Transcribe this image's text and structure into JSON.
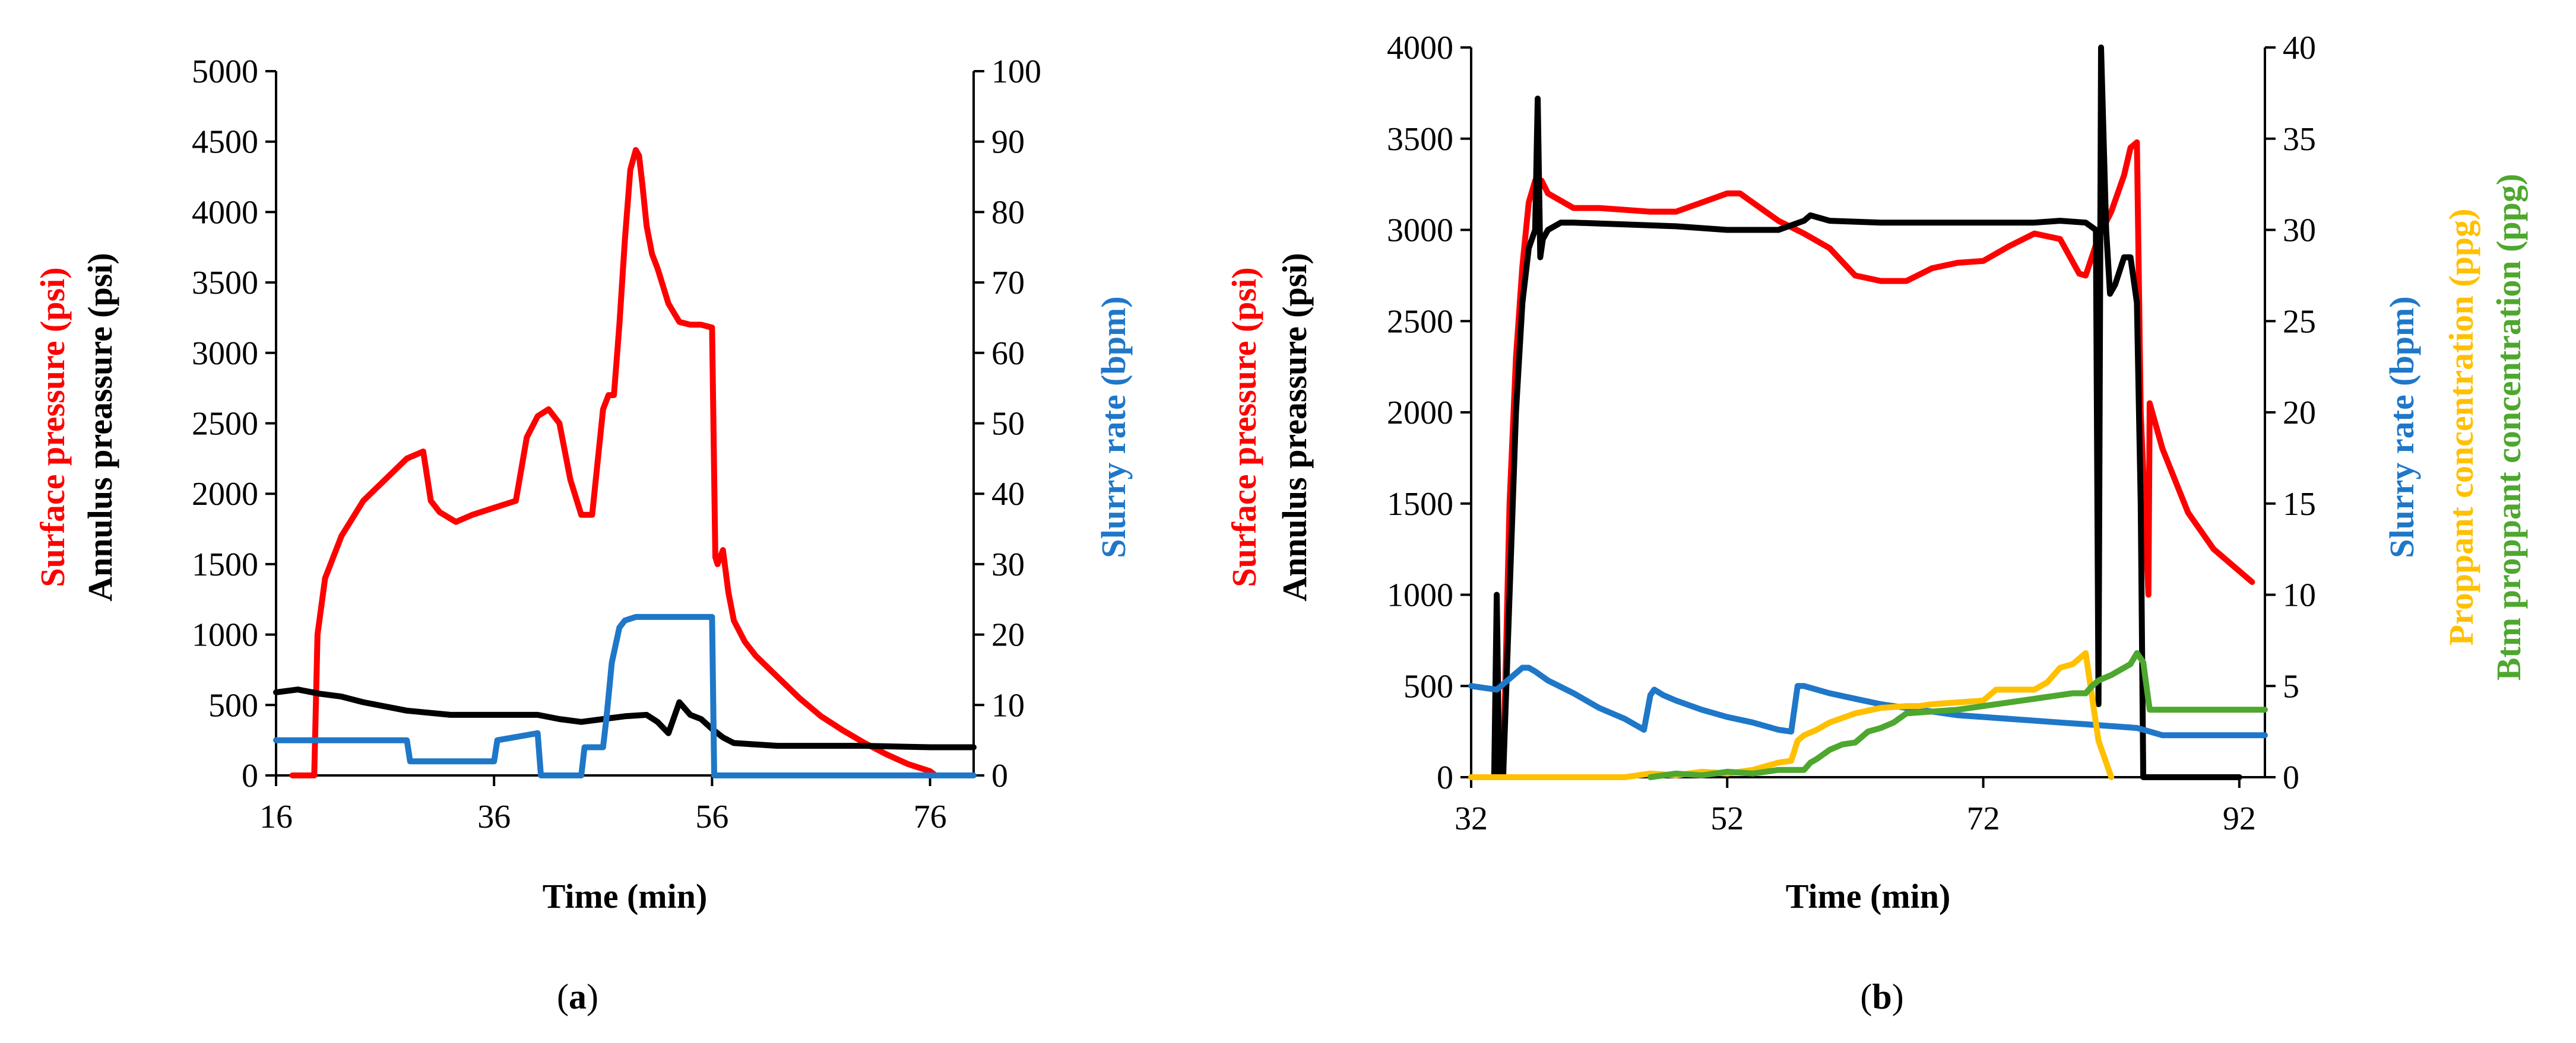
{
  "colors": {
    "surface": "#ff0000",
    "annulus": "#000000",
    "slurry": "#1f77c8",
    "proppant": "#ffc000",
    "btm": "#4ea72e"
  },
  "chart_data": [
    {
      "type": "line",
      "caption": "a",
      "xlabel": "Time (min)",
      "xlim": [
        16,
        80
      ],
      "xticks": [
        16,
        36,
        56,
        76
      ],
      "left_axis": {
        "labels": [
          {
            "text": "Surface pressure (psi)",
            "color": "surface"
          },
          {
            "text": "Annulus preassure (psi)",
            "color": "annulus"
          }
        ],
        "ylim": [
          0,
          5000
        ],
        "ticks": [
          0,
          500,
          1000,
          1500,
          2000,
          2500,
          3000,
          3500,
          4000,
          4500,
          5000
        ]
      },
      "right_axis": {
        "labels": [
          {
            "text": "Slurry rate (bpm)",
            "color": "slurry"
          }
        ],
        "ylim": [
          0,
          100
        ],
        "ticks": [
          0,
          10,
          20,
          30,
          40,
          50,
          60,
          70,
          80,
          90,
          100
        ]
      },
      "series": [
        {
          "name": "Surface pressure (psi)",
          "axis": "left",
          "color": "surface",
          "x": [
            17.5,
            19.5,
            19.8,
            20.5,
            22,
            24,
            26,
            28,
            29.5,
            30.2,
            31,
            32.5,
            34,
            36,
            38,
            39,
            40,
            41,
            42,
            43,
            44,
            45,
            46,
            46.5,
            47,
            47.5,
            48,
            48.5,
            49,
            49.3,
            49.6,
            50,
            50.5,
            51,
            52,
            53,
            54,
            55,
            56,
            56.3,
            56.5,
            57,
            57.5,
            58,
            59,
            60,
            62,
            64,
            66,
            68,
            70,
            72,
            74,
            76,
            76.5
          ],
          "y": [
            0,
            0,
            1000,
            1400,
            1700,
            1950,
            2100,
            2250,
            2300,
            1950,
            1870,
            1800,
            1850,
            1900,
            1950,
            2400,
            2550,
            2600,
            2500,
            2100,
            1850,
            1850,
            2600,
            2700,
            2700,
            3200,
            3800,
            4300,
            4440,
            4400,
            4200,
            3900,
            3700,
            3600,
            3350,
            3220,
            3200,
            3200,
            3180,
            1550,
            1500,
            1600,
            1300,
            1100,
            950,
            850,
            700,
            550,
            420,
            320,
            230,
            150,
            80,
            30,
            0
          ]
        },
        {
          "name": "Annulus preassure (psi)",
          "axis": "left",
          "color": "annulus",
          "x": [
            16,
            18,
            20,
            22,
            24,
            28,
            32,
            36,
            40,
            42,
            44,
            46,
            48,
            50,
            51,
            52,
            53,
            54,
            55,
            56,
            57,
            58,
            60,
            62,
            66,
            70,
            76,
            80
          ],
          "y": [
            590,
            610,
            580,
            560,
            520,
            460,
            430,
            430,
            430,
            400,
            380,
            400,
            420,
            430,
            380,
            300,
            520,
            430,
            400,
            330,
            270,
            230,
            220,
            210,
            210,
            210,
            200,
            200
          ]
        },
        {
          "name": "Slurry rate (bpm)",
          "axis": "right",
          "color": "slurry",
          "x": [
            16,
            28,
            28.3,
            33,
            36,
            36.3,
            40,
            40.3,
            42,
            42.3,
            44,
            44.3,
            46,
            46.3,
            46.8,
            47.5,
            48,
            49,
            50,
            52,
            54,
            56,
            56.2,
            60,
            70,
            80
          ],
          "y": [
            5,
            5,
            2,
            2,
            2,
            5,
            6,
            0,
            0,
            0,
            0,
            4,
            4,
            8,
            16,
            21,
            22,
            22.5,
            22.5,
            22.5,
            22.5,
            22.5,
            0,
            0,
            0,
            0
          ]
        }
      ]
    },
    {
      "type": "line",
      "caption": "b",
      "xlabel": "Time (min)",
      "xlim": [
        32,
        94
      ],
      "xticks": [
        32,
        52,
        72,
        92
      ],
      "left_axis": {
        "labels": [
          {
            "text": "Surface pressure (psi)",
            "color": "surface"
          },
          {
            "text": "Annulus preassure (psi)",
            "color": "annulus"
          }
        ],
        "ylim": [
          0,
          4000
        ],
        "ticks": [
          0,
          500,
          1000,
          1500,
          2000,
          2500,
          3000,
          3500,
          4000
        ]
      },
      "right_axis": {
        "labels": [
          {
            "text": "Slurry rate (bpm)",
            "color": "slurry"
          },
          {
            "text": "Proppant concentration (ppg)",
            "color": "proppant"
          },
          {
            "text": "Btm proppant concentration (ppg)",
            "color": "btm"
          }
        ],
        "ylim": [
          0,
          40
        ],
        "ticks": [
          0,
          5,
          10,
          15,
          20,
          25,
          30,
          35,
          40
        ]
      },
      "series": [
        {
          "name": "Surface pressure (psi)",
          "axis": "left",
          "color": "surface",
          "x": [
            34.5,
            35,
            35.5,
            36,
            36.5,
            37,
            37.5,
            38,
            40,
            42,
            44,
            46,
            48,
            50,
            52,
            53,
            54,
            56,
            58,
            60,
            62,
            64,
            66,
            68,
            70,
            72,
            74,
            76,
            78,
            79.5,
            80,
            81,
            82,
            83,
            83.5,
            84,
            84.3,
            84.6,
            84.9,
            85,
            86,
            88,
            90,
            93
          ],
          "y": [
            0,
            1500,
            2300,
            2800,
            3150,
            3270,
            3270,
            3200,
            3120,
            3120,
            3110,
            3100,
            3100,
            3150,
            3200,
            3200,
            3150,
            3050,
            2980,
            2900,
            2750,
            2720,
            2720,
            2790,
            2820,
            2830,
            2910,
            2980,
            2950,
            2760,
            2750,
            2960,
            3100,
            3300,
            3450,
            3480,
            2000,
            1500,
            1000,
            2050,
            1800,
            1450,
            1250,
            1070
          ]
        },
        {
          "name": "Annulus preassure (psi)",
          "axis": "left",
          "color": "annulus",
          "x": [
            32,
            33.8,
            34,
            34.2,
            34.5,
            35,
            35.5,
            36,
            36.5,
            37,
            37.2,
            37.4,
            37.6,
            38,
            39,
            40,
            44,
            48,
            52,
            56,
            58,
            58.5,
            60,
            64,
            68,
            72,
            76,
            78,
            80,
            80.8,
            81,
            81.2,
            81.6,
            81.9,
            82.3,
            83,
            83.5,
            84,
            84.3,
            84.5,
            84.8,
            85,
            88,
            92
          ],
          "y": [
            0,
            0,
            1000,
            0,
            0,
            1000,
            2000,
            2600,
            2900,
            3000,
            3720,
            2850,
            2950,
            3000,
            3040,
            3040,
            3030,
            3020,
            3000,
            3000,
            3050,
            3080,
            3050,
            3040,
            3040,
            3040,
            3040,
            3050,
            3040,
            3000,
            400,
            4000,
            3000,
            2650,
            2700,
            2850,
            2850,
            2600,
            1500,
            0,
            0,
            0,
            0,
            0
          ]
        },
        {
          "name": "Slurry rate (bpm)",
          "axis": "right",
          "color": "slurry",
          "x": [
            32,
            34,
            36,
            36.5,
            37,
            38,
            40,
            42,
            44,
            45.5,
            46,
            46.3,
            47,
            48,
            50,
            52,
            54,
            56,
            57,
            57.5,
            58,
            60,
            62,
            64,
            66,
            68,
            70,
            72,
            74,
            76,
            78,
            80,
            82,
            84,
            85,
            86,
            88,
            90,
            92,
            94
          ],
          "y": [
            5,
            4.8,
            6,
            6,
            5.8,
            5.3,
            4.6,
            3.8,
            3.2,
            2.6,
            4.5,
            4.8,
            4.5,
            4.2,
            3.7,
            3.3,
            3,
            2.6,
            2.5,
            5,
            5,
            4.6,
            4.3,
            4,
            3.8,
            3.6,
            3.4,
            3.3,
            3.2,
            3.1,
            3,
            2.9,
            2.8,
            2.7,
            2.5,
            2.3,
            2.3,
            2.3,
            2.3,
            2.3
          ]
        },
        {
          "name": "Proppant concentration (ppg)",
          "axis": "right",
          "color": "proppant",
          "x": [
            32,
            44,
            46,
            48,
            50,
            52,
            54,
            56,
            57,
            57.5,
            58,
            59,
            60,
            62,
            64,
            66,
            67,
            68,
            70,
            72,
            73,
            74,
            76,
            77,
            78,
            79,
            80,
            81,
            82
          ],
          "y": [
            0,
            0,
            0.2,
            0.1,
            0.3,
            0.2,
            0.4,
            0.8,
            0.9,
            2,
            2.3,
            2.6,
            3,
            3.5,
            3.8,
            3.9,
            3.9,
            4,
            4.1,
            4.2,
            4.8,
            4.8,
            4.8,
            5.2,
            6,
            6.2,
            6.8,
            2,
            0
          ]
        },
        {
          "name": "Btm proppant concentration (ppg)",
          "axis": "right",
          "color": "btm",
          "x": [
            46,
            48,
            50,
            52,
            54,
            56,
            58,
            58.5,
            59,
            60,
            61,
            62,
            63,
            64,
            65,
            66,
            68,
            70,
            72,
            74,
            76,
            78,
            79,
            80,
            80.5,
            81,
            82,
            83,
            83.5,
            84,
            84.5,
            85,
            88,
            92,
            94
          ],
          "y": [
            0,
            0.2,
            0.1,
            0.3,
            0.2,
            0.4,
            0.4,
            0.8,
            1,
            1.5,
            1.8,
            1.9,
            2.5,
            2.7,
            3,
            3.5,
            3.6,
            3.7,
            3.9,
            4.1,
            4.3,
            4.5,
            4.6,
            4.6,
            5,
            5.3,
            5.6,
            6,
            6.2,
            6.8,
            6.3,
            3.7,
            3.7,
            3.7,
            3.7
          ]
        }
      ]
    }
  ]
}
